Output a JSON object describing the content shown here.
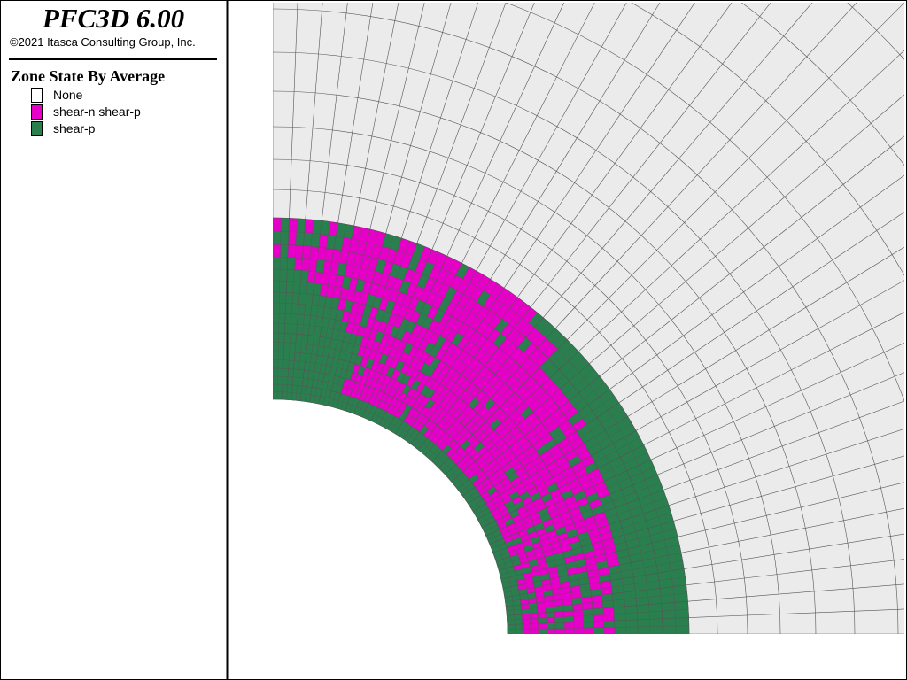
{
  "header": {
    "app_title": "PFC3D 6.00",
    "copyright": "©2021 Itasca Consulting Group, Inc."
  },
  "legend": {
    "title": "Zone State By Average",
    "items": [
      {
        "label": "None",
        "color": "#ffffff"
      },
      {
        "label": "shear-n shear-p",
        "color": "#e600c8"
      },
      {
        "label": "shear-p",
        "color": "#2a7f4f"
      }
    ]
  },
  "plot": {
    "description_type": "quarter-circle zone mesh around circular hole",
    "colors": {
      "background_mesh": "#ebebeb",
      "grid_line": "#555555",
      "hole": "#ffffff",
      "shear_n_shear_p": "#e600c8",
      "shear_p": "#2a7f4f",
      "frame": "#000000"
    }
  }
}
